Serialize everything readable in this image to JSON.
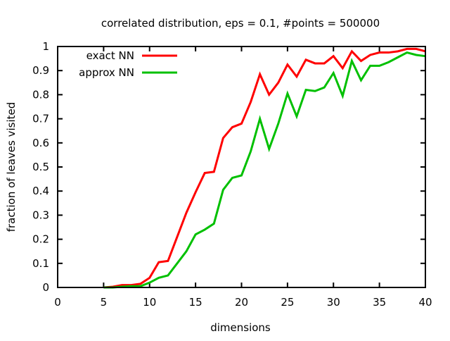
{
  "chart_data": {
    "type": "line",
    "title": "correlated distribution, eps = 0.1, #points = 500000",
    "xlabel": "dimensions",
    "ylabel": "fraction of leaves visited",
    "xlim": [
      0,
      40
    ],
    "ylim": [
      0,
      1
    ],
    "xticks": [
      "0",
      "5",
      "10",
      "15",
      "20",
      "25",
      "30",
      "35",
      "40"
    ],
    "yticks": [
      "0",
      "0.1",
      "0.2",
      "0.3",
      "0.4",
      "0.5",
      "0.6",
      "0.7",
      "0.8",
      "0.9",
      "1"
    ],
    "grid": false,
    "legend_position": "top-left",
    "x": [
      5,
      6,
      7,
      8,
      9,
      10,
      11,
      12,
      13,
      14,
      15,
      16,
      17,
      18,
      19,
      20,
      21,
      22,
      23,
      24,
      25,
      26,
      27,
      28,
      29,
      30,
      31,
      32,
      33,
      34,
      35,
      36,
      37,
      38,
      39,
      40
    ],
    "series": [
      {
        "name": "exact NN",
        "color": "#ff0000",
        "values": [
          0,
          0.003,
          0.01,
          0.01,
          0.015,
          0.04,
          0.105,
          0.11,
          0.21,
          0.31,
          0.395,
          0.475,
          0.48,
          0.62,
          0.665,
          0.68,
          0.77,
          0.885,
          0.8,
          0.85,
          0.925,
          0.875,
          0.945,
          0.93,
          0.93,
          0.96,
          0.91,
          0.98,
          0.94,
          0.965,
          0.975,
          0.975,
          0.98,
          0.99,
          0.99,
          0.98
        ]
      },
      {
        "name": "approx NN",
        "color": "#00c000",
        "values": [
          0,
          0,
          0.003,
          0.005,
          0.005,
          0.02,
          0.04,
          0.05,
          0.1,
          0.15,
          0.22,
          0.24,
          0.265,
          0.405,
          0.455,
          0.465,
          0.565,
          0.7,
          0.575,
          0.68,
          0.805,
          0.71,
          0.82,
          0.815,
          0.83,
          0.89,
          0.795,
          0.94,
          0.86,
          0.92,
          0.92,
          0.935,
          0.955,
          0.975,
          0.965,
          0.96
        ]
      }
    ]
  }
}
